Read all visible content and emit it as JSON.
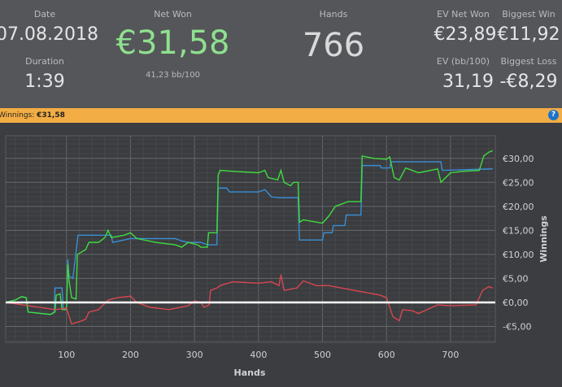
{
  "stats": {
    "date_label": "Date",
    "date": "07.08.2018",
    "duration_label": "Duration",
    "duration": "1:39",
    "net_won_label": "Net Won",
    "net_won": "€31,58",
    "bb100": "41,23 bb/100",
    "hands_label": "Hands",
    "hands": "766",
    "ev_net_won_label": "EV Net Won",
    "ev_net_won": "€23,89",
    "biggest_win_label": "Biggest Win",
    "biggest_win": "€11,92",
    "ev_bb100_label": "EV (bb/100)",
    "ev_bb100": "31,19",
    "biggest_loss_label": "Biggest Loss",
    "biggest_loss": "-€8,29"
  },
  "winnings_bar": {
    "label": "Winnings:",
    "value": "€31,58",
    "help_icon": "question-circle-icon",
    "help": "?"
  },
  "colors": {
    "net_won": "#8fe08f",
    "orange": "#f2ad44",
    "green_line": "#3fdc3f",
    "blue_line": "#3a8fd6",
    "red_line": "#d9474f"
  },
  "chart_data": {
    "type": "line",
    "xlabel": "Hands",
    "ylabel": "Winnings",
    "xlim": [
      5,
      770
    ],
    "ylim": [
      -8.3,
      34.7
    ],
    "grid": true,
    "xticks": [
      100,
      200,
      300,
      400,
      500,
      600,
      700
    ],
    "xtick_labels": [
      "100",
      "200",
      "300",
      "400",
      "500",
      "600",
      "700"
    ],
    "yticks": [
      -5,
      0,
      5,
      10,
      15,
      20,
      25,
      30
    ],
    "ytick_labels": [
      "-€5,00",
      "€0,00",
      "€5,00",
      "€10,00",
      "€15,00",
      "€20,00",
      "€25,00",
      "€30,00"
    ],
    "series": [
      {
        "color": "#3a8fd6",
        "points": [
          [
            5,
            0
          ],
          [
            20,
            0.5
          ],
          [
            30,
            1.2
          ],
          [
            37,
            1
          ],
          [
            40,
            -2
          ],
          [
            60,
            -2.3
          ],
          [
            75,
            -2.5
          ],
          [
            81,
            -2
          ],
          [
            82,
            3
          ],
          [
            93,
            3
          ],
          [
            95,
            -1.5
          ],
          [
            100,
            -1.5
          ],
          [
            102,
            9
          ],
          [
            104,
            5.5
          ],
          [
            110,
            5
          ],
          [
            118,
            14
          ],
          [
            170,
            14
          ],
          [
            172,
            12.5
          ],
          [
            200,
            13.3
          ],
          [
            270,
            13.3
          ],
          [
            280,
            12.8
          ],
          [
            290,
            12.5
          ],
          [
            310,
            12.5
          ],
          [
            320,
            12
          ],
          [
            335,
            12
          ],
          [
            337,
            23.8
          ],
          [
            350,
            23.8
          ],
          [
            355,
            23
          ],
          [
            400,
            23
          ],
          [
            410,
            23.5
          ],
          [
            420,
            22
          ],
          [
            430,
            21.8
          ],
          [
            462,
            21.8
          ],
          [
            464,
            13
          ],
          [
            500,
            13
          ],
          [
            502,
            14.5
          ],
          [
            515,
            14.5
          ],
          [
            517,
            16
          ],
          [
            535,
            16
          ],
          [
            537,
            18.2
          ],
          [
            560,
            18.2
          ],
          [
            562,
            28.5
          ],
          [
            590,
            28.5
          ],
          [
            592,
            28
          ],
          [
            605,
            28
          ],
          [
            607,
            29.3
          ],
          [
            685,
            29.3
          ],
          [
            687,
            27.5
          ],
          [
            766,
            27.8
          ]
        ]
      },
      {
        "color": "#3fdc3f",
        "points": [
          [
            5,
            0
          ],
          [
            20,
            0.5
          ],
          [
            30,
            1.2
          ],
          [
            37,
            1
          ],
          [
            40,
            -2
          ],
          [
            60,
            -2.3
          ],
          [
            75,
            -2.5
          ],
          [
            82,
            -2
          ],
          [
            84,
            1.5
          ],
          [
            90,
            1.8
          ],
          [
            93,
            -1.5
          ],
          [
            100,
            -1.5
          ],
          [
            102,
            8
          ],
          [
            104,
            4.5
          ],
          [
            108,
            1
          ],
          [
            115,
            0.7
          ],
          [
            117,
            10
          ],
          [
            130,
            11
          ],
          [
            135,
            12.5
          ],
          [
            150,
            12.5
          ],
          [
            160,
            13.5
          ],
          [
            165,
            15
          ],
          [
            170,
            13.5
          ],
          [
            190,
            14
          ],
          [
            200,
            14.5
          ],
          [
            210,
            13.3
          ],
          [
            240,
            12.5
          ],
          [
            270,
            12
          ],
          [
            280,
            11.5
          ],
          [
            290,
            12.5
          ],
          [
            305,
            12
          ],
          [
            310,
            11.5
          ],
          [
            320,
            11.5
          ],
          [
            322,
            14.5
          ],
          [
            335,
            14.5
          ],
          [
            337,
            26.5
          ],
          [
            340,
            27.5
          ],
          [
            360,
            27.3
          ],
          [
            400,
            27
          ],
          [
            410,
            27.5
          ],
          [
            415,
            26
          ],
          [
            430,
            25.5
          ],
          [
            435,
            27.5
          ],
          [
            440,
            25
          ],
          [
            450,
            24.3
          ],
          [
            455,
            25
          ],
          [
            462,
            25
          ],
          [
            464,
            16.7
          ],
          [
            470,
            17.2
          ],
          [
            500,
            16.5
          ],
          [
            510,
            18
          ],
          [
            520,
            20
          ],
          [
            540,
            21
          ],
          [
            560,
            21
          ],
          [
            562,
            30.5
          ],
          [
            580,
            30
          ],
          [
            600,
            29.8
          ],
          [
            605,
            30.3
          ],
          [
            612,
            26
          ],
          [
            620,
            25.5
          ],
          [
            630,
            28
          ],
          [
            650,
            27
          ],
          [
            680,
            27.8
          ],
          [
            685,
            25
          ],
          [
            700,
            27
          ],
          [
            720,
            27.3
          ],
          [
            745,
            27.5
          ],
          [
            752,
            30.5
          ],
          [
            760,
            31.3
          ],
          [
            766,
            31.6
          ]
        ]
      },
      {
        "color": "#d9474f",
        "points": [
          [
            5,
            0
          ],
          [
            82,
            -1.5
          ],
          [
            100,
            -1.2
          ],
          [
            108,
            -4.5
          ],
          [
            120,
            -4
          ],
          [
            130,
            -3.5
          ],
          [
            135,
            -2
          ],
          [
            150,
            -1.5
          ],
          [
            165,
            0.5
          ],
          [
            180,
            1
          ],
          [
            200,
            1.3
          ],
          [
            210,
            0
          ],
          [
            230,
            -1
          ],
          [
            260,
            -1.5
          ],
          [
            290,
            -0.7
          ],
          [
            300,
            0.3
          ],
          [
            310,
            0
          ],
          [
            315,
            -1
          ],
          [
            323,
            -0.5
          ],
          [
            325,
            2.5
          ],
          [
            335,
            3
          ],
          [
            340,
            3.5
          ],
          [
            360,
            4.3
          ],
          [
            400,
            4
          ],
          [
            420,
            4.3
          ],
          [
            432,
            3.5
          ],
          [
            435,
            5.8
          ],
          [
            440,
            2.5
          ],
          [
            460,
            3
          ],
          [
            470,
            4.5
          ],
          [
            490,
            3.5
          ],
          [
            510,
            3.5
          ],
          [
            530,
            3
          ],
          [
            550,
            2.5
          ],
          [
            590,
            1.5
          ],
          [
            600,
            1
          ],
          [
            610,
            -3
          ],
          [
            620,
            -3.8
          ],
          [
            625,
            -1.5
          ],
          [
            640,
            -1.7
          ],
          [
            650,
            -2.3
          ],
          [
            680,
            -0.5
          ],
          [
            700,
            -0.7
          ],
          [
            740,
            -0.5
          ],
          [
            750,
            2.5
          ],
          [
            760,
            3.3
          ],
          [
            766,
            3
          ]
        ]
      }
    ]
  }
}
